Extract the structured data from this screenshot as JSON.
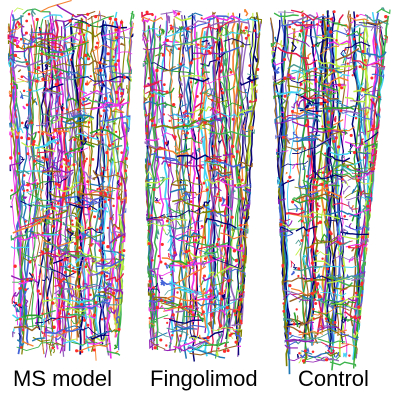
{
  "figure": {
    "panels": [
      {
        "id": "ms",
        "label": "MS model"
      },
      {
        "id": "fingo",
        "label": "Fingolimod"
      },
      {
        "id": "control",
        "label": "Control"
      }
    ],
    "trace_colors": [
      "#e6194b",
      "#3cb44b",
      "#4363d8",
      "#911eb4",
      "#f58231",
      "#42d4f4",
      "#f032e6",
      "#9a6324",
      "#000075",
      "#808000",
      "#469990",
      "#bfef45",
      "#1f77b4",
      "#2ca02c",
      "#9467bd"
    ],
    "marker_color": "#ff2a2a"
  }
}
